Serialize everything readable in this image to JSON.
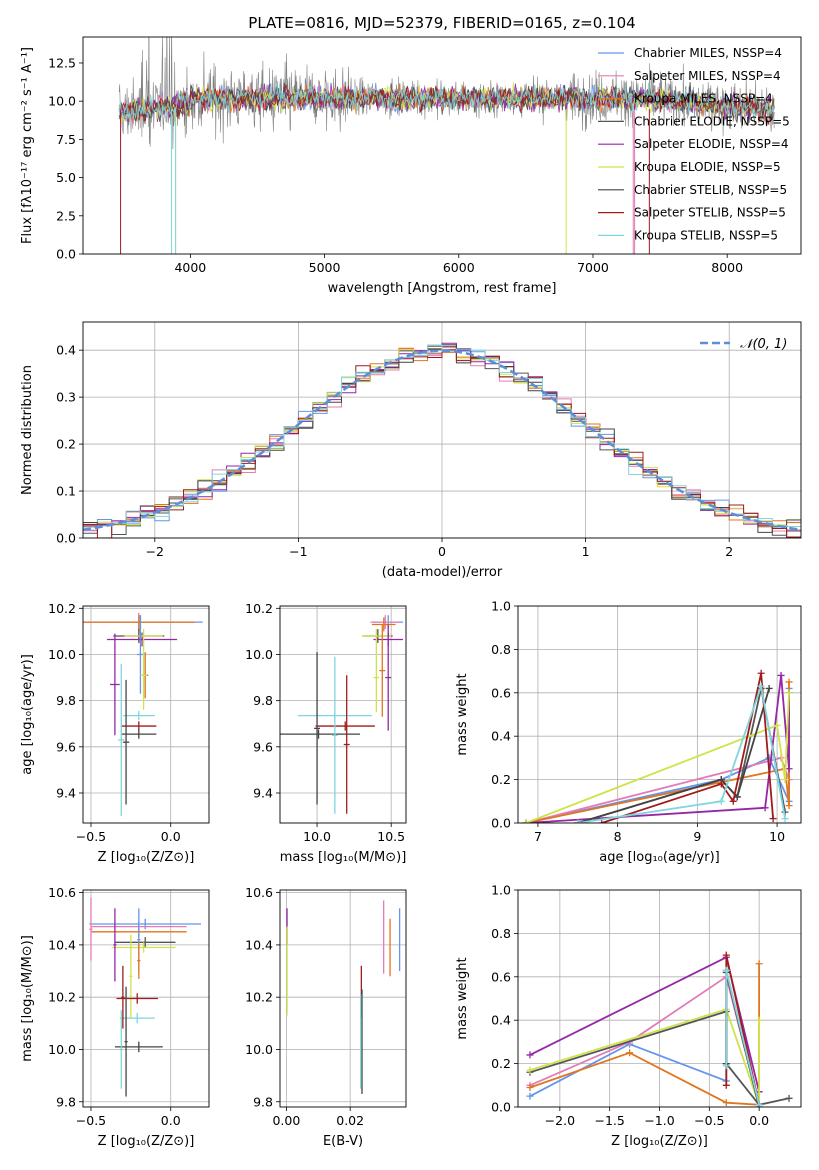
{
  "chart_data": [
    {
      "id": "spectrum",
      "type": "line",
      "title": "PLATE=0816, MJD=52379, FIBERID=0165, z=0.104",
      "xlabel": "wavelength [Angstrom, rest frame]",
      "ylabel": "Flux [fλ10⁻¹⁷ erg cm⁻² s⁻¹ A⁻¹]",
      "xlim": [
        3200,
        8550
      ],
      "ylim": [
        0,
        14.2
      ],
      "xticks": [
        4000,
        5000,
        6000,
        7000,
        8000
      ],
      "yticks": [
        0.0,
        2.5,
        5.0,
        7.5,
        10.0,
        12.5
      ],
      "legend_position": "top-right",
      "legend": [
        {
          "name": "Chabrier MILES, NSSP=4",
          "color": "#6495ed"
        },
        {
          "name": "Salpeter MILES, NSSP=4",
          "color": "#e37cb5"
        },
        {
          "name": "Kroupa MILES, NSSP=4",
          "color": "#e0761f"
        },
        {
          "name": "Chabrier ELODIE, NSSP=5",
          "color": "#555555"
        },
        {
          "name": "Salpeter ELODIE, NSSP=4",
          "color": "#9526a6"
        },
        {
          "name": "Kroupa ELODIE, NSSP=5",
          "color": "#cfe34a"
        },
        {
          "name": "Chabrier STELIB, NSSP=5",
          "color": "#444444"
        },
        {
          "name": "Salpeter STELIB, NSSP=5",
          "color": "#a01c1c"
        },
        {
          "name": "Kroupa STELIB, NSSP=5",
          "color": "#7fd6dc"
        }
      ],
      "wave_range": [
        3470,
        8350
      ],
      "continuum_level": 10.2
    },
    {
      "id": "residuals",
      "type": "line",
      "xlabel": "(data-model)/error",
      "ylabel": "Normed distribution",
      "xlim": [
        -2.5,
        2.5
      ],
      "ylim": [
        0,
        0.46
      ],
      "xticks": [
        -2,
        -1,
        0,
        1,
        2
      ],
      "yticks": [
        0.0,
        0.1,
        0.2,
        0.3,
        0.4
      ],
      "grid": true,
      "legend_position": "top-right",
      "reference": {
        "name": "𝒩(0, 1)",
        "mean": 0,
        "sigma": 1,
        "color": "#5b8fd9"
      },
      "bin_width": 0.1,
      "colors": [
        "#6495ed",
        "#e37cb5",
        "#e0761f",
        "#555555",
        "#9526a6",
        "#cfe34a",
        "#444444",
        "#a01c1c",
        "#7fd6dc"
      ]
    },
    {
      "id": "age_vs_Z",
      "type": "scatter",
      "xlabel": "Z [log₁₀(Z/Z⊙)]",
      "ylabel": "age  [log₁₀(age/yr)]",
      "xlim": [
        -0.55,
        0.24
      ],
      "ylim": [
        9.27,
        10.21
      ],
      "xticks": [
        -0.5,
        0.0
      ],
      "yticks": [
        9.4,
        9.6,
        9.8,
        10.0,
        10.2
      ],
      "grid": true,
      "points": [
        {
          "x": -0.19,
          "y": 10.14,
          "xerr": 0.39,
          "yerr": 0.03,
          "color": "#6495ed"
        },
        {
          "x": -0.2,
          "y": 10.14,
          "xerr": 0.35,
          "yerr": 0.04,
          "color": "#e37cb5"
        },
        {
          "x": -0.2,
          "y": 10.14,
          "xerr": 0.35,
          "yerr": 0.03,
          "color": "#e0761f"
        },
        {
          "x": -0.2,
          "y": 10.08,
          "xerr": 0.16,
          "yerr": 0.03,
          "color": "#555555"
        },
        {
          "x": -0.18,
          "y": 10.065,
          "xerr": 0.22,
          "yerr": 0.03,
          "color": "#9526a6"
        },
        {
          "x": -0.17,
          "y": 10.08,
          "xerr": 0.12,
          "yerr": 0.03,
          "color": "#cfe34a"
        },
        {
          "x": -0.35,
          "y": 9.87,
          "xerr": 0.03,
          "yerr": 0.22,
          "color": "#9526a6"
        },
        {
          "x": -0.19,
          "y": 10.0,
          "xerr": 0.02,
          "yerr": 0.17,
          "color": "#6495ed"
        },
        {
          "x": -0.16,
          "y": 9.91,
          "xerr": 0.02,
          "yerr": 0.1,
          "color": "#e0761f"
        },
        {
          "x": -0.17,
          "y": 9.91,
          "xerr": 0.02,
          "yerr": 0.15,
          "color": "#cfe34a"
        },
        {
          "x": -0.2,
          "y": 9.735,
          "xerr": 0.1,
          "yerr": 0.02,
          "color": "#7fd6dc"
        },
        {
          "x": -0.2,
          "y": 9.69,
          "xerr": 0.11,
          "yerr": 0.02,
          "color": "#a01c1c"
        },
        {
          "x": -0.2,
          "y": 9.655,
          "xerr": 0.11,
          "yerr": 0.02,
          "color": "#444444"
        },
        {
          "x": -0.31,
          "y": 9.63,
          "xerr": 0.02,
          "yerr": 0.33,
          "color": "#7fd6dc"
        },
        {
          "x": -0.28,
          "y": 9.62,
          "xerr": 0.02,
          "yerr": 0.27,
          "color": "#444444"
        }
      ]
    },
    {
      "id": "age_vs_mass",
      "type": "scatter",
      "xlabel": "mass [log₁₀(M/M⊙)]",
      "ylabel": "",
      "xlim": [
        9.75,
        10.6
      ],
      "ylim": [
        9.27,
        10.21
      ],
      "xticks": [
        10.0,
        10.5
      ],
      "yticks": [
        9.4,
        9.6,
        9.8,
        10.0,
        10.2
      ],
      "grid": true,
      "points": [
        {
          "x": 10.48,
          "y": 10.14,
          "xerr": 0.1,
          "yerr": 0.03,
          "color": "#6495ed"
        },
        {
          "x": 10.46,
          "y": 10.14,
          "xerr": 0.1,
          "yerr": 0.03,
          "color": "#e37cb5"
        },
        {
          "x": 10.45,
          "y": 10.13,
          "xerr": 0.08,
          "yerr": 0.03,
          "color": "#e0761f"
        },
        {
          "x": 10.41,
          "y": 10.08,
          "xerr": 0.1,
          "yerr": 0.03,
          "color": "#555555"
        },
        {
          "x": 10.48,
          "y": 10.065,
          "xerr": 0.1,
          "yerr": 0.03,
          "color": "#9526a6"
        },
        {
          "x": 10.4,
          "y": 10.08,
          "xerr": 0.1,
          "yerr": 0.03,
          "color": "#cfe34a"
        },
        {
          "x": 10.48,
          "y": 9.9,
          "xerr": 0.02,
          "yerr": 0.23,
          "color": "#9526a6"
        },
        {
          "x": 10.4,
          "y": 9.9,
          "xerr": 0.02,
          "yerr": 0.15,
          "color": "#cfe34a"
        },
        {
          "x": 10.44,
          "y": 9.93,
          "xerr": 0.02,
          "yerr": 0.2,
          "color": "#e0761f"
        },
        {
          "x": 10.12,
          "y": 9.735,
          "xerr": 0.25,
          "yerr": 0.02,
          "color": "#7fd6dc"
        },
        {
          "x": 10.19,
          "y": 9.69,
          "xerr": 0.2,
          "yerr": 0.02,
          "color": "#a01c1c"
        },
        {
          "x": 10.01,
          "y": 9.655,
          "xerr": 0.28,
          "yerr": 0.02,
          "color": "#444444"
        },
        {
          "x": 10.12,
          "y": 9.65,
          "xerr": 0.02,
          "yerr": 0.34,
          "color": "#7fd6dc"
        },
        {
          "x": 10.2,
          "y": 9.61,
          "xerr": 0.02,
          "yerr": 0.3,
          "color": "#a01c1c"
        },
        {
          "x": 10.0,
          "y": 9.68,
          "xerr": 0.02,
          "yerr": 0.33,
          "color": "#444444"
        }
      ]
    },
    {
      "id": "mass_weight_vs_age",
      "type": "line",
      "xlabel": "age  [log₁₀(age/yr)]",
      "ylabel": "mass weight",
      "xlim": [
        6.75,
        10.3
      ],
      "ylim": [
        0,
        1
      ],
      "xticks": [
        7,
        8,
        9,
        10
      ],
      "yticks": [
        0.0,
        0.2,
        0.4,
        0.6,
        0.8,
        1.0
      ],
      "grid": true,
      "series": [
        {
          "color": "#6495ed",
          "x": [
            6.85,
            9.3,
            9.9,
            10.15,
            10.15
          ],
          "y": [
            0.0,
            0.2,
            0.3,
            0.1,
            0.62
          ]
        },
        {
          "color": "#e37cb5",
          "x": [
            6.85,
            10.05,
            10.15,
            10.15
          ],
          "y": [
            0.0,
            0.3,
            0.2,
            0.6
          ]
        },
        {
          "color": "#e0761f",
          "x": [
            6.85,
            10.1,
            10.15,
            10.15
          ],
          "y": [
            0.0,
            0.25,
            0.08,
            0.65
          ]
        },
        {
          "color": "#555555",
          "x": [
            7.5,
            9.3,
            9.5,
            9.8,
            10.1
          ],
          "y": [
            0.0,
            0.2,
            0.12,
            0.62,
            0.05
          ]
        },
        {
          "color": "#9526a6",
          "x": [
            6.85,
            9.85,
            10.05,
            10.15,
            10.15
          ],
          "y": [
            0.0,
            0.07,
            0.68,
            0.25,
            0.6
          ]
        },
        {
          "color": "#cfe34a",
          "x": [
            6.85,
            10.0,
            10.1,
            10.15
          ],
          "y": [
            0.0,
            0.45,
            0.2,
            0.6
          ]
        },
        {
          "color": "#444444",
          "x": [
            7.5,
            9.3,
            9.5,
            9.9
          ],
          "y": [
            0.0,
            0.2,
            0.12,
            0.62
          ]
        },
        {
          "color": "#a01c1c",
          "x": [
            7.8,
            9.3,
            9.45,
            9.8,
            9.95
          ],
          "y": [
            0.0,
            0.18,
            0.1,
            0.69,
            0.02
          ]
        },
        {
          "color": "#7fd6dc",
          "x": [
            7.5,
            9.3,
            9.8,
            10.1
          ],
          "y": [
            0.0,
            0.1,
            0.63,
            0.02
          ]
        }
      ]
    },
    {
      "id": "mass_vs_Z",
      "type": "scatter",
      "xlabel": "Z [log₁₀(Z/Z⊙)]",
      "ylabel": "mass [log₁₀(M/M⊙)]",
      "xlim": [
        -0.55,
        0.24
      ],
      "ylim": [
        9.78,
        10.61
      ],
      "xticks": [
        -0.5,
        0.0
      ],
      "yticks": [
        9.8,
        10.0,
        10.2,
        10.4,
        10.6
      ],
      "grid": true,
      "points": [
        {
          "x": -0.16,
          "y": 10.48,
          "xerr": 0.35,
          "yerr": 0.02,
          "color": "#6495ed"
        },
        {
          "x": -0.2,
          "y": 10.47,
          "xerr": 0.3,
          "yerr": 0.02,
          "color": "#e37cb5"
        },
        {
          "x": -0.2,
          "y": 10.45,
          "xerr": 0.3,
          "yerr": 0.02,
          "color": "#e0761f"
        },
        {
          "x": -0.16,
          "y": 10.41,
          "xerr": 0.19,
          "yerr": 0.02,
          "color": "#555555"
        },
        {
          "x": -0.17,
          "y": 10.39,
          "xerr": 0.2,
          "yerr": 0.02,
          "color": "#cfe34a"
        },
        {
          "x": -0.5,
          "y": 10.46,
          "xerr": 0.01,
          "yerr": 0.12,
          "color": "#e37cb5"
        },
        {
          "x": -0.35,
          "y": 10.4,
          "xerr": 0.01,
          "yerr": 0.14,
          "color": "#9526a6"
        },
        {
          "x": -0.2,
          "y": 10.42,
          "xerr": 0.01,
          "yerr": 0.12,
          "color": "#6495ed"
        },
        {
          "x": -0.2,
          "y": 10.34,
          "xerr": 0.01,
          "yerr": 0.07,
          "color": "#e0761f"
        },
        {
          "x": -0.25,
          "y": 10.28,
          "xerr": 0.01,
          "yerr": 0.16,
          "color": "#cfe34a"
        },
        {
          "x": -0.21,
          "y": 10.195,
          "xerr": 0.13,
          "yerr": 0.02,
          "color": "#a01c1c"
        },
        {
          "x": -0.21,
          "y": 10.12,
          "xerr": 0.11,
          "yerr": 0.02,
          "color": "#7fd6dc"
        },
        {
          "x": -0.2,
          "y": 10.01,
          "xerr": 0.15,
          "yerr": 0.02,
          "color": "#444444"
        },
        {
          "x": -0.3,
          "y": 10.2,
          "xerr": 0.01,
          "yerr": 0.12,
          "color": "#a01c1c"
        },
        {
          "x": -0.31,
          "y": 10.0,
          "xerr": 0.01,
          "yerr": 0.15,
          "color": "#7fd6dc"
        },
        {
          "x": -0.28,
          "y": 10.03,
          "xerr": 0.01,
          "yerr": 0.21,
          "color": "#444444"
        }
      ]
    },
    {
      "id": "mass_vs_EBV",
      "type": "scatter",
      "xlabel": "E(B-V)",
      "ylabel": "",
      "xlim": [
        -0.002,
        0.0375
      ],
      "ylim": [
        9.78,
        10.61
      ],
      "xticks": [
        0.0,
        0.02
      ],
      "yticks": [
        9.8,
        10.0,
        10.2,
        10.4,
        10.6
      ],
      "grid": true,
      "points": [
        {
          "x": 0.0002,
          "y": 10.47,
          "xerr": 0,
          "yerr": 0.07,
          "color": "#9526a6"
        },
        {
          "x": 0.0002,
          "y": 10.3,
          "xerr": 0,
          "yerr": 0.17,
          "color": "#cfe34a"
        },
        {
          "x": 0.0235,
          "y": 10.22,
          "xerr": 0,
          "yerr": 0.1,
          "color": "#a01c1c"
        },
        {
          "x": 0.0237,
          "y": 10.03,
          "xerr": 0,
          "yerr": 0.2,
          "color": "#444444"
        },
        {
          "x": 0.0233,
          "y": 10.03,
          "xerr": 0,
          "yerr": 0.18,
          "color": "#7fd6dc"
        },
        {
          "x": 0.0305,
          "y": 10.43,
          "xerr": 0,
          "yerr": 0.14,
          "color": "#e37cb5"
        },
        {
          "x": 0.0325,
          "y": 10.39,
          "xerr": 0,
          "yerr": 0.11,
          "color": "#e0761f"
        },
        {
          "x": 0.0355,
          "y": 10.42,
          "xerr": 0,
          "yerr": 0.12,
          "color": "#6495ed"
        }
      ]
    },
    {
      "id": "mass_weight_vs_Z",
      "type": "line",
      "xlabel": "Z [log₁₀(Z/Z⊙)]",
      "ylabel": "mass weight",
      "xlim": [
        -2.42,
        0.42
      ],
      "ylim": [
        0,
        1
      ],
      "xticks": [
        -2.0,
        -1.5,
        -1.0,
        -0.5,
        0.0
      ],
      "yticks": [
        0.0,
        0.2,
        0.4,
        0.6,
        0.8,
        1.0
      ],
      "grid": true,
      "series": [
        {
          "color": "#6495ed",
          "x": [
            -2.3,
            -1.3,
            -0.33,
            -0.33,
            0.0
          ],
          "y": [
            0.05,
            0.29,
            0.12,
            0.63,
            0.01
          ]
        },
        {
          "color": "#e37cb5",
          "x": [
            -2.3,
            -1.3,
            -0.33,
            0.0
          ],
          "y": [
            0.1,
            0.3,
            0.6,
            0.01
          ]
        },
        {
          "color": "#e0761f",
          "x": [
            -2.3,
            -1.3,
            -0.33,
            0.0,
            0.0
          ],
          "y": [
            0.09,
            0.25,
            0.02,
            0.01,
            0.66
          ]
        },
        {
          "color": "#555555",
          "x": [
            -2.3,
            -0.33,
            -0.33,
            0.0,
            0.3
          ],
          "y": [
            0.16,
            0.44,
            0.2,
            0.01,
            0.04
          ]
        },
        {
          "color": "#9526a6",
          "x": [
            -2.3,
            -0.33,
            0.0,
            0.0
          ],
          "y": [
            0.24,
            0.69,
            0.07,
            0.01
          ]
        },
        {
          "color": "#cfe34a",
          "x": [
            -2.3,
            -0.33,
            0.0,
            0.0
          ],
          "y": [
            0.17,
            0.45,
            0.01,
            0.4
          ]
        },
        {
          "color": "#444444",
          "x": [
            -0.33,
            -0.33,
            0.0
          ],
          "y": [
            0.2,
            0.62,
            0.0
          ]
        },
        {
          "color": "#a01c1c",
          "x": [
            -0.33,
            -0.33,
            0.0
          ],
          "y": [
            0.1,
            0.7,
            0.01
          ]
        },
        {
          "color": "#7fd6dc",
          "x": [
            -0.33,
            -0.33,
            0.0
          ],
          "y": [
            0.19,
            0.63,
            0.01
          ]
        }
      ]
    }
  ]
}
